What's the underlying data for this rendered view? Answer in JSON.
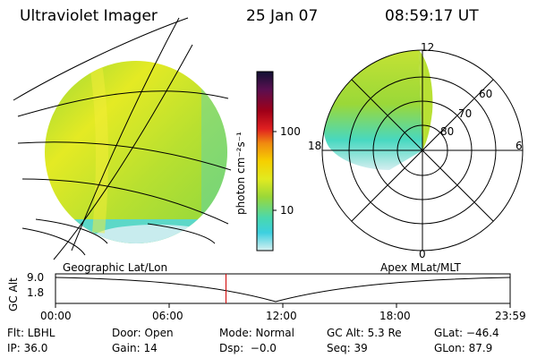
{
  "header": {
    "instrument": "Ultraviolet Imager",
    "date": "25 Jan 07",
    "time": "08:59:17 UT"
  },
  "colorbar": {
    "unit_label": "photon cm⁻²s⁻¹",
    "ticks": [
      "100",
      "10"
    ],
    "colors": [
      "#111133",
      "#5a0f50",
      "#a00018",
      "#e02020",
      "#f08a10",
      "#f6d000",
      "#e2ea20",
      "#9ad838",
      "#48d8b0",
      "#3cd0e0",
      "#c8ecee"
    ]
  },
  "polar_plot": {
    "rings": [
      "80",
      "70",
      "60"
    ],
    "mlt_labels": {
      "top": "12",
      "left": "18",
      "right": "6",
      "bottom": "0"
    }
  },
  "timeline": {
    "left_label": "Geographic Lat/Lon",
    "right_label": "Apex MLat/MLT",
    "axis_title": "GC Alt",
    "y_ticks": [
      "9.0",
      "1.8"
    ],
    "x_ticks": [
      "00:00",
      "06:00",
      "12:00",
      "18:00",
      "23:59"
    ],
    "current_marker_hour": 9.0
  },
  "info": {
    "row1": [
      "Flt: LBHL",
      "Door: Open",
      "Mode: Normal",
      "GC Alt: 5.3 Re",
      "GLat: −46.4"
    ],
    "row2": [
      "IP: 36.0",
      "Gain: 14",
      "Dsp:  −0.0",
      "Seq: 39",
      "GLon: 87.9"
    ]
  }
}
